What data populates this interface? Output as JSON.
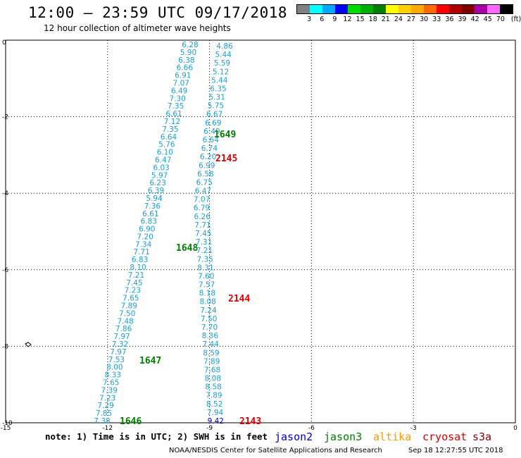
{
  "header": {
    "title": "12:00 — 23:59 UTC 09/17/2018",
    "subtitle": "12 hour collection of altimeter wave heights"
  },
  "color_scale": {
    "labels": [
      "3",
      "6",
      "9",
      "12",
      "15",
      "18",
      "21",
      "24",
      "27",
      "30",
      "33",
      "36",
      "39",
      "42",
      "45",
      "70",
      "(ft)"
    ],
    "colors": [
      "#808080",
      "#00ffff",
      "#00aaff",
      "#0000ff",
      "#00dd00",
      "#00b000",
      "#008000",
      "#ffff00",
      "#ffd000",
      "#ffaa00",
      "#ff6a00",
      "#ff0000",
      "#b00000",
      "#800000",
      "#aa00aa",
      "#ff66ff",
      "#000000"
    ]
  },
  "axes": {
    "lat_labels": [
      "0",
      "-2",
      "-4",
      "-6",
      "-8",
      "-10"
    ],
    "lon_labels": [
      "-15",
      "-12",
      "-9",
      "-6",
      "-3",
      "0"
    ]
  },
  "passes": [
    {
      "id": "1649",
      "color": "#008000"
    },
    {
      "id": "2145",
      "color": "#e00000"
    },
    {
      "id": "1648",
      "color": "#008000"
    },
    {
      "id": "2144",
      "color": "#e00000"
    },
    {
      "id": "1647",
      "color": "#008000"
    },
    {
      "id": "1646",
      "color": "#008000"
    },
    {
      "id": "2143",
      "color": "#e00000"
    }
  ],
  "track_a_values": [
    "6.28",
    "5.90",
    "6.38",
    "6.66",
    "6.91",
    "7.07",
    "6.49",
    "7.30",
    "7.35",
    "6.61",
    "7.12",
    "7.35",
    "6.64",
    "5.76",
    "6.10",
    "6.47",
    "6.03",
    "5.97",
    "6.23",
    "6.39",
    "5.94",
    "7.36",
    "6.61",
    "6.83",
    "6.90",
    "7.20",
    "7.34",
    "7.71",
    "6.83",
    "8.10",
    "7.21",
    "7.45",
    "7.23",
    "7.65",
    "7.89",
    "7.50",
    "7.48",
    "7.86",
    "7.97",
    "7.32",
    "7.97",
    "7.53",
    "8.00",
    "8.33",
    "7.65",
    "7.39",
    "7.23",
    "7.29",
    "7.85",
    "7.38"
  ],
  "track_b_values": [
    "4.86",
    "5.44",
    "5.59",
    "5.12",
    "5.44",
    "6.35",
    "5.31",
    "5.75",
    "6.67",
    "6.69",
    "6.49",
    "6.64",
    "6.74",
    "6.20",
    "6.99",
    "6.58",
    "6.75",
    "6.47",
    "7.07",
    "6.79",
    "6.26",
    "7.71",
    "7.45",
    "7.31",
    "7.21",
    "7.35",
    "8.31",
    "7.60",
    "7.57",
    "8.18",
    "8.08",
    "7.24",
    "7.50",
    "7.70",
    "8.36",
    "7.44",
    "8.59",
    "7.89",
    "7.68",
    "8.08",
    "8.58",
    "7.89",
    "8.52",
    "7.94",
    "9.42"
  ],
  "legend": {
    "note": "note: 1) Time is in UTC; 2) SWH is in feet",
    "satellites": [
      {
        "name": "jason2",
        "color": "#0000cc"
      },
      {
        "name": "jason3",
        "color": "#008000"
      },
      {
        "name": "altika",
        "color": "#ff9900"
      },
      {
        "name": "cryosat",
        "color": "#dd0000"
      },
      {
        "name": "s3a",
        "color": "#880000"
      }
    ]
  },
  "footer": {
    "credit": "NOAA/NESDIS Center for Satellite Applications and Research",
    "timestamp": "Sep 18 12:27:55 UTC 2018"
  }
}
